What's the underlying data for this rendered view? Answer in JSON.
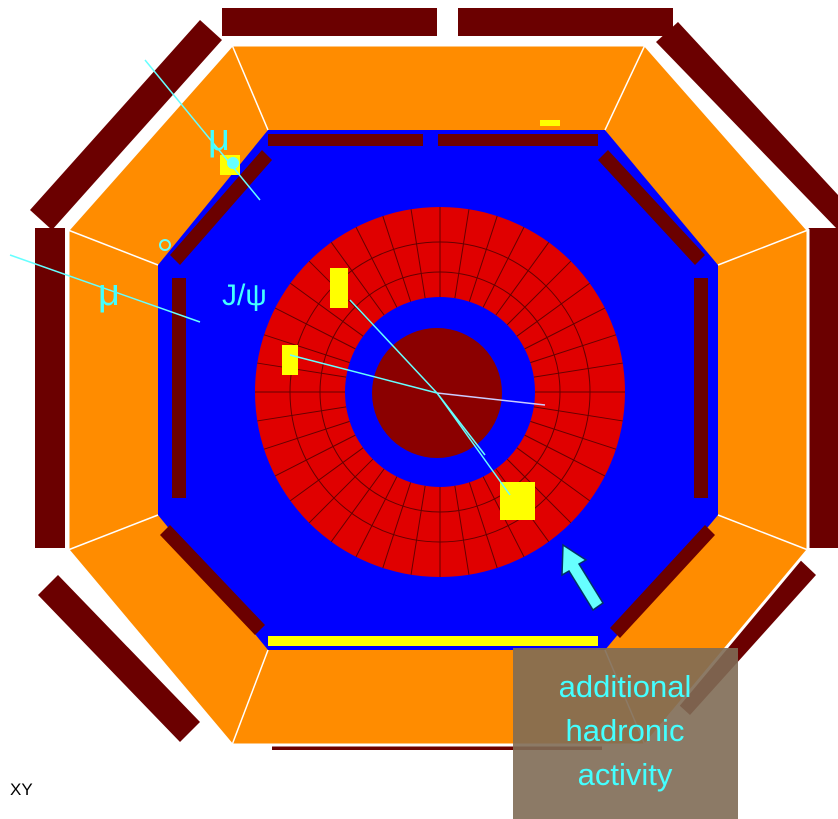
{
  "annotations": [
    {
      "text": "μ"
    },
    {
      "text": "μ"
    },
    {
      "text": "J/ψ"
    }
  ],
  "callout": {
    "lines": [
      "additional",
      "hadronic",
      "activity"
    ]
  },
  "view_label": "XY"
}
